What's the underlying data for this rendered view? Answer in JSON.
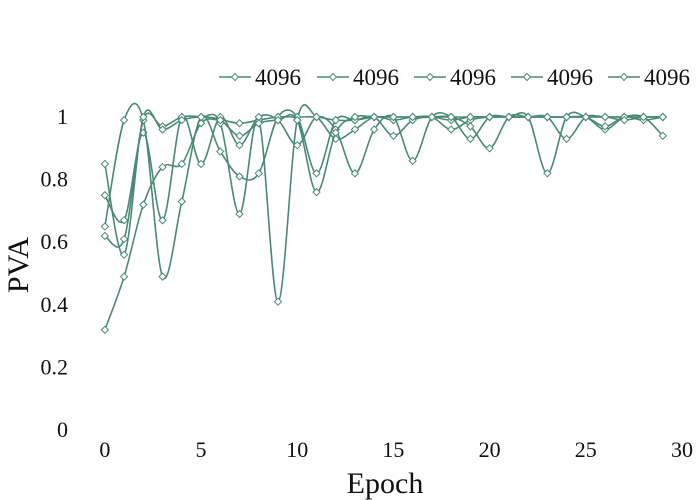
{
  "chart_data": {
    "type": "line",
    "xlabel": "Epoch",
    "ylabel": "PVA",
    "xlim": [
      -1.5,
      30
    ],
    "ylim": [
      0,
      1.05
    ],
    "xticks": [
      0,
      5,
      10,
      15,
      20,
      25,
      30
    ],
    "yticks": [
      0,
      0.2,
      0.4,
      0.6,
      0.8,
      1
    ],
    "grid": false,
    "legend": "top",
    "line_color": "#4a8a72",
    "marker": "diamond-open",
    "series": [
      {
        "name": "4096",
        "x": [
          0,
          1,
          2,
          3,
          4,
          5,
          6,
          7,
          8,
          9,
          10,
          11,
          12,
          13,
          14,
          15,
          16,
          17,
          18,
          19,
          20,
          21,
          22,
          23,
          24,
          25,
          26,
          27,
          28,
          29
        ],
        "values": [
          0.32,
          0.49,
          0.72,
          0.84,
          0.85,
          0.98,
          0.99,
          0.98,
          0.99,
          1.0,
          1.0,
          1.0,
          0.99,
          0.99,
          1.0,
          1.0,
          1.0,
          1.0,
          0.96,
          0.99,
          1.0,
          1.0,
          1.0,
          1.0,
          1.0,
          1.0,
          1.0,
          1.0,
          1.0,
          1.0
        ]
      },
      {
        "name": "4096",
        "x": [
          0,
          1,
          2,
          3,
          4,
          5,
          6,
          7,
          8,
          9,
          10,
          11,
          12,
          13,
          14,
          15,
          16,
          17,
          18,
          19,
          20,
          21,
          22,
          23,
          24,
          25,
          26,
          27,
          28,
          29
        ],
        "values": [
          0.62,
          0.61,
          0.99,
          0.97,
          1.0,
          1.0,
          0.98,
          0.69,
          0.99,
          0.41,
          0.99,
          1.0,
          0.93,
          0.96,
          1.0,
          0.99,
          1.0,
          1.0,
          0.99,
          1.0,
          1.0,
          1.0,
          1.0,
          0.82,
          1.0,
          1.0,
          0.96,
          1.0,
          1.0,
          0.94
        ]
      },
      {
        "name": "4096",
        "x": [
          0,
          1,
          2,
          3,
          4,
          5,
          6,
          7,
          8,
          9,
          10,
          11,
          12,
          13,
          14,
          15,
          16,
          17,
          18,
          19,
          20,
          21,
          22,
          23,
          24,
          25,
          26,
          27,
          28,
          29
        ],
        "values": [
          0.75,
          0.67,
          0.95,
          0.67,
          1.0,
          0.85,
          1.0,
          0.91,
          1.0,
          0.99,
          0.91,
          1.0,
          0.96,
          0.82,
          0.96,
          1.0,
          0.86,
          1.0,
          1.0,
          0.93,
          1.0,
          1.0,
          1.0,
          1.0,
          0.93,
          1.0,
          1.0,
          1.0,
          1.0,
          1.0
        ]
      },
      {
        "name": "4096",
        "x": [
          0,
          1,
          2,
          3,
          4,
          5,
          6,
          7,
          8,
          9,
          10,
          11,
          12,
          13,
          14,
          15,
          16,
          17,
          18,
          19,
          20,
          21,
          22,
          23,
          24,
          25,
          26,
          27,
          28,
          29
        ],
        "values": [
          0.65,
          0.99,
          0.99,
          0.49,
          0.73,
          1.0,
          0.89,
          0.81,
          0.82,
          1.0,
          1.0,
          0.82,
          0.99,
          0.99,
          1.0,
          0.94,
          0.99,
          1.0,
          1.0,
          0.97,
          0.9,
          1.0,
          1.0,
          1.0,
          1.0,
          1.0,
          0.97,
          1.0,
          0.99,
          1.0
        ]
      },
      {
        "name": "4096",
        "x": [
          0,
          1,
          2,
          3,
          4,
          5,
          6,
          7,
          8,
          9,
          10,
          11,
          12,
          13,
          14,
          15,
          16,
          17,
          18,
          19,
          20,
          21,
          22,
          23,
          24,
          25,
          26,
          27,
          28,
          29
        ],
        "values": [
          0.85,
          0.56,
          1.0,
          0.96,
          0.99,
          1.0,
          0.99,
          0.94,
          0.98,
          0.99,
          0.99,
          0.76,
          0.95,
          1.0,
          1.0,
          1.0,
          1.0,
          1.0,
          1.0,
          1.0,
          1.0,
          1.0,
          1.0,
          1.0,
          1.0,
          1.0,
          1.0,
          0.99,
          1.0,
          1.0
        ]
      }
    ]
  }
}
